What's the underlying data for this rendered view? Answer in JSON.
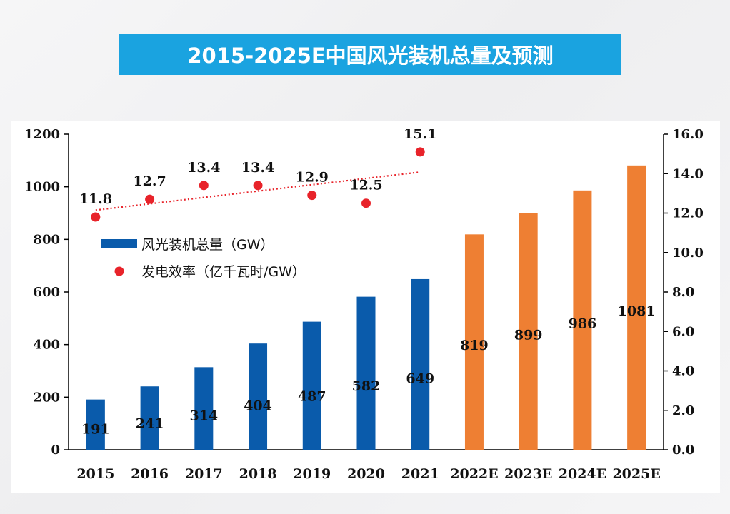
{
  "header": {
    "title": "2015-2025E中国风光装机总量及预测"
  },
  "colors": {
    "actual_bar": "#0a5bab",
    "forecast_bar": "#ee7f33",
    "dot": "#e8232a",
    "trend": "#e8232a"
  },
  "chart_data": {
    "type": "bar",
    "categories": [
      "2015",
      "2016",
      "2017",
      "2018",
      "2019",
      "2020",
      "2021",
      "2022E",
      "2023E",
      "2024E",
      "2025E"
    ],
    "series": [
      {
        "name": "风光装机总量（GW）",
        "type": "bar",
        "axis": "left",
        "values": [
          191,
          241,
          314,
          404,
          487,
          582,
          649,
          819,
          899,
          986,
          1081
        ],
        "labels": [
          "191",
          "241",
          "314",
          "404",
          "487",
          "582",
          "649",
          "819",
          "899",
          "986",
          "1081"
        ]
      },
      {
        "name": "发电效率（亿千瓦时/GW）",
        "type": "scatter",
        "axis": "right",
        "values": [
          11.8,
          12.7,
          13.4,
          13.4,
          12.9,
          12.5,
          15.1
        ],
        "labels": [
          "11.8",
          "12.7",
          "13.4",
          "13.4",
          "12.9",
          "12.5",
          "15.1"
        ],
        "trendline": "linear, dotted"
      }
    ],
    "y_left": {
      "ylim": [
        0,
        1200
      ],
      "ticks": [
        "0",
        "200",
        "400",
        "600",
        "800",
        "1000",
        "1200"
      ]
    },
    "y_right": {
      "ylim": [
        0,
        16
      ],
      "ticks": [
        "0.0",
        "2.0",
        "4.0",
        "6.0",
        "8.0",
        "10.0",
        "12.0",
        "14.0",
        "16.0"
      ]
    },
    "actual_count": 7,
    "legend_position": "left, inside plot",
    "grid": false
  }
}
